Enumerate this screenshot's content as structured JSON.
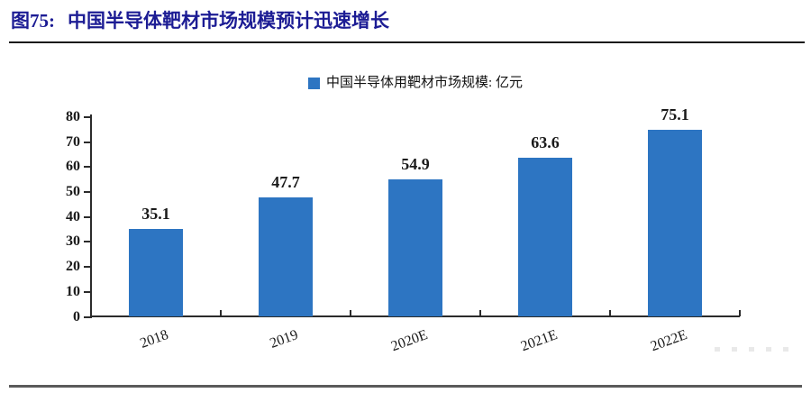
{
  "figure": {
    "label_prefix": "图75:",
    "title": "中国半导体靶材市场规模预计迅速增长"
  },
  "legend": {
    "label": "中国半导体用靶材市场规模: 亿元"
  },
  "colors": {
    "bar": "#2d75c2",
    "title_text": "#1c1c94",
    "axis": "#2b2b2b",
    "title_rule": "#1a1a1a",
    "bottom_rule": "#5a5a5a"
  },
  "chart_data": {
    "type": "bar",
    "title": "中国半导体靶材市场规模预计迅速增长",
    "categories": [
      "2018",
      "2019",
      "2020E",
      "2021E",
      "2022E"
    ],
    "values": [
      35.1,
      47.7,
      54.9,
      63.6,
      75.1
    ],
    "value_labels": [
      "35.1",
      "47.7",
      "54.9",
      "63.6",
      "75.1"
    ],
    "series": [
      {
        "name": "中国半导体用靶材市场规模: 亿元",
        "values": [
          35.1,
          47.7,
          54.9,
          63.6,
          75.1
        ]
      }
    ],
    "xlabel": "",
    "ylabel": "",
    "unit": "亿元",
    "ylim": [
      0,
      80
    ],
    "ytick_step": 10,
    "yticks": [
      0,
      10,
      20,
      30,
      40,
      50,
      60,
      70,
      80
    ],
    "legend_position": "top",
    "grid": false,
    "bar_color": "#2d75c2"
  }
}
